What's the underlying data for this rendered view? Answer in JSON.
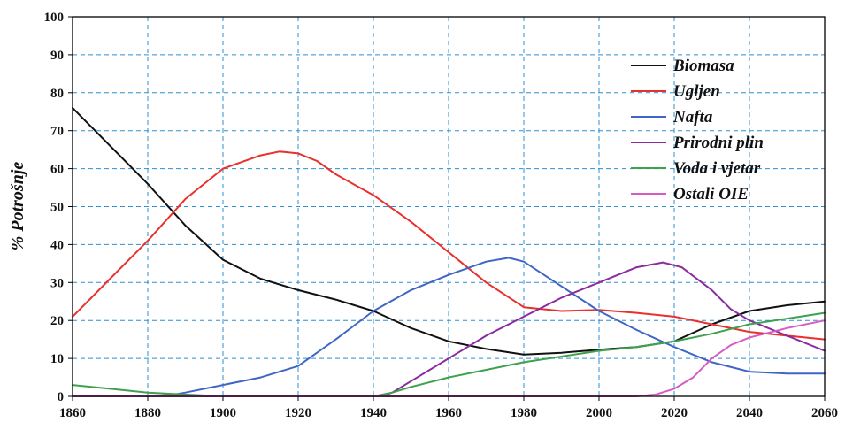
{
  "chart_data": {
    "type": "line",
    "ylabel": "% Potrošnje",
    "xlabel": "",
    "xlim": [
      1860,
      2060
    ],
    "ylim": [
      0,
      100
    ],
    "x_ticks": [
      1860,
      1880,
      1900,
      1920,
      1940,
      1960,
      1980,
      2000,
      2020,
      2040,
      2060
    ],
    "y_ticks": [
      0,
      10,
      20,
      30,
      40,
      50,
      60,
      70,
      80,
      90,
      100
    ],
    "grid": true,
    "legend_position": "top-right",
    "series": [
      {
        "name": "Biomasa",
        "color": "#111111",
        "points": [
          [
            1860,
            76
          ],
          [
            1870,
            66
          ],
          [
            1880,
            56
          ],
          [
            1890,
            45
          ],
          [
            1900,
            36
          ],
          [
            1910,
            31
          ],
          [
            1920,
            28
          ],
          [
            1930,
            25.5
          ],
          [
            1940,
            22.5
          ],
          [
            1950,
            18
          ],
          [
            1960,
            14.5
          ],
          [
            1970,
            12.5
          ],
          [
            1980,
            11
          ],
          [
            1990,
            11.5
          ],
          [
            2000,
            12.3
          ],
          [
            2010,
            13
          ],
          [
            2020,
            14.5
          ],
          [
            2030,
            19
          ],
          [
            2040,
            22.5
          ],
          [
            2050,
            24
          ],
          [
            2060,
            25
          ]
        ]
      },
      {
        "name": "Ugljen",
        "color": "#e8302c",
        "points": [
          [
            1860,
            21
          ],
          [
            1870,
            31
          ],
          [
            1880,
            41
          ],
          [
            1890,
            52
          ],
          [
            1900,
            60
          ],
          [
            1910,
            63.5
          ],
          [
            1915,
            64.5
          ],
          [
            1920,
            64
          ],
          [
            1925,
            62
          ],
          [
            1930,
            58.5
          ],
          [
            1940,
            53
          ],
          [
            1950,
            46
          ],
          [
            1960,
            38
          ],
          [
            1970,
            30
          ],
          [
            1980,
            23.5
          ],
          [
            1990,
            22.5
          ],
          [
            2000,
            22.8
          ],
          [
            2010,
            22
          ],
          [
            2020,
            21
          ],
          [
            2030,
            19
          ],
          [
            2040,
            17
          ],
          [
            2050,
            16
          ],
          [
            2060,
            15
          ]
        ]
      },
      {
        "name": "Nafta",
        "color": "#3f66c4",
        "points": [
          [
            1860,
            0
          ],
          [
            1880,
            0
          ],
          [
            1887,
            0.5
          ],
          [
            1890,
            1
          ],
          [
            1900,
            3
          ],
          [
            1910,
            5
          ],
          [
            1920,
            8
          ],
          [
            1930,
            15
          ],
          [
            1940,
            22.5
          ],
          [
            1950,
            28
          ],
          [
            1960,
            32
          ],
          [
            1970,
            35.5
          ],
          [
            1976,
            36.5
          ],
          [
            1980,
            35.5
          ],
          [
            1990,
            29
          ],
          [
            2000,
            22.5
          ],
          [
            2010,
            17.5
          ],
          [
            2020,
            13
          ],
          [
            2030,
            9
          ],
          [
            2040,
            6.5
          ],
          [
            2050,
            6
          ],
          [
            2060,
            6
          ]
        ]
      },
      {
        "name": "Prirodni plin",
        "color": "#8a2b9e",
        "points": [
          [
            1860,
            0
          ],
          [
            1942,
            0
          ],
          [
            1945,
            1
          ],
          [
            1950,
            4
          ],
          [
            1960,
            10
          ],
          [
            1970,
            16
          ],
          [
            1980,
            21
          ],
          [
            1990,
            26
          ],
          [
            2000,
            30
          ],
          [
            2010,
            34
          ],
          [
            2017,
            35.3
          ],
          [
            2022,
            34
          ],
          [
            2030,
            28
          ],
          [
            2035,
            23
          ],
          [
            2040,
            20
          ],
          [
            2050,
            16
          ],
          [
            2060,
            12
          ]
        ]
      },
      {
        "name": "Voda i vjetar",
        "color": "#3ea14e",
        "points": [
          [
            1860,
            3
          ],
          [
            1870,
            2
          ],
          [
            1880,
            1
          ],
          [
            1890,
            0.5
          ],
          [
            1900,
            0
          ],
          [
            1940,
            0
          ],
          [
            1945,
            1
          ],
          [
            1950,
            2.5
          ],
          [
            1960,
            5
          ],
          [
            1970,
            7
          ],
          [
            1980,
            9
          ],
          [
            1990,
            10.5
          ],
          [
            2000,
            12
          ],
          [
            2010,
            13
          ],
          [
            2020,
            14.5
          ],
          [
            2030,
            16.5
          ],
          [
            2040,
            19
          ],
          [
            2050,
            20.5
          ],
          [
            2060,
            22
          ]
        ]
      },
      {
        "name": "Ostali OIE",
        "color": "#d65cc4",
        "points": [
          [
            1860,
            0
          ],
          [
            2010,
            0
          ],
          [
            2015,
            0.5
          ],
          [
            2020,
            2
          ],
          [
            2025,
            5
          ],
          [
            2030,
            10
          ],
          [
            2035,
            13.5
          ],
          [
            2040,
            15.5
          ],
          [
            2050,
            18
          ],
          [
            2060,
            20
          ]
        ]
      }
    ]
  }
}
